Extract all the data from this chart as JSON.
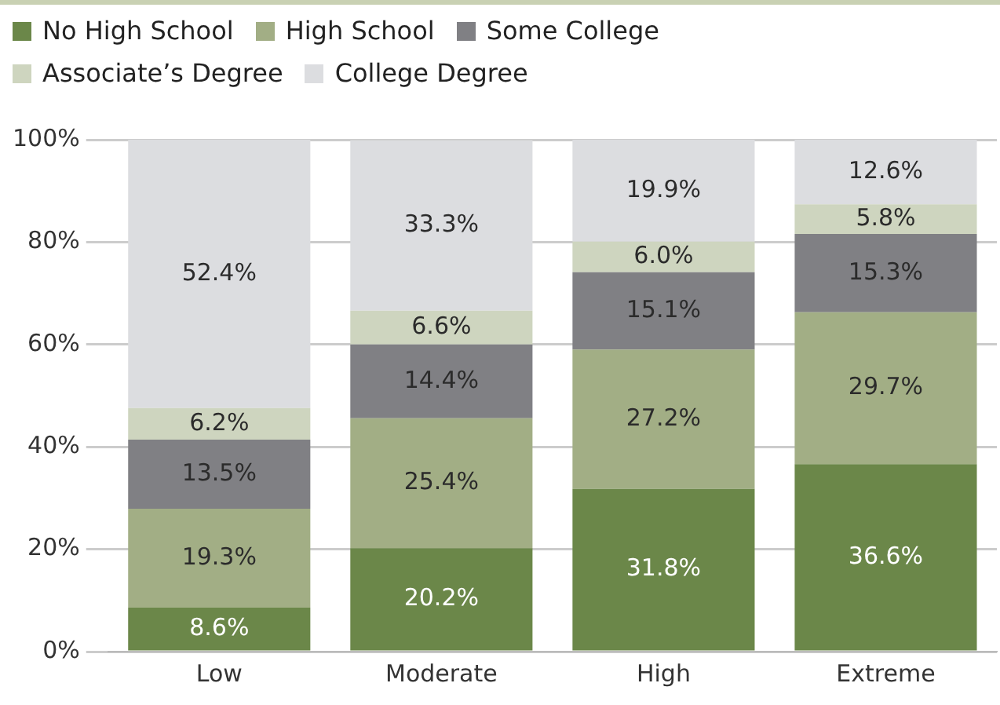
{
  "chart_data": {
    "type": "bar",
    "stacked": true,
    "categories": [
      "Low",
      "Moderate",
      "High",
      "Extreme"
    ],
    "series": [
      {
        "name": "No High School",
        "color": "#6b8749",
        "values": [
          8.6,
          20.2,
          31.8,
          36.6
        ]
      },
      {
        "name": "High School",
        "color": "#a2ae85",
        "values": [
          19.3,
          25.4,
          27.2,
          29.7
        ]
      },
      {
        "name": "Some College",
        "color": "#808084",
        "values": [
          13.5,
          14.4,
          15.1,
          15.3
        ]
      },
      {
        "name": "Associate’s Degree",
        "color": "#ced5bf",
        "values": [
          6.2,
          6.6,
          6.0,
          5.8
        ]
      },
      {
        "name": "College Degree",
        "color": "#dcdde0",
        "values": [
          52.4,
          33.3,
          19.9,
          12.6
        ]
      }
    ],
    "ylim": [
      0,
      100
    ],
    "yticks": [
      {
        "value": 0,
        "label": "0%"
      },
      {
        "value": 20,
        "label": "20%"
      },
      {
        "value": 40,
        "label": "40%"
      },
      {
        "value": 60,
        "label": "60%"
      },
      {
        "value": 80,
        "label": "80%"
      },
      {
        "value": 100,
        "label": "100%"
      }
    ],
    "grid": "y",
    "legend": "top left",
    "value_labels": [
      [
        "8.6%",
        "20.2%",
        "31.8%",
        "36.6%"
      ],
      [
        "19.3%",
        "25.4%",
        "27.2%",
        "29.7%"
      ],
      [
        "13.5%",
        "14.4%",
        "15.1%",
        "15.3%"
      ],
      [
        "6.2%",
        "6.6%",
        "6.0%",
        "5.8%"
      ],
      [
        "52.4%",
        "33.3%",
        "19.9%",
        "12.6%"
      ]
    ]
  }
}
